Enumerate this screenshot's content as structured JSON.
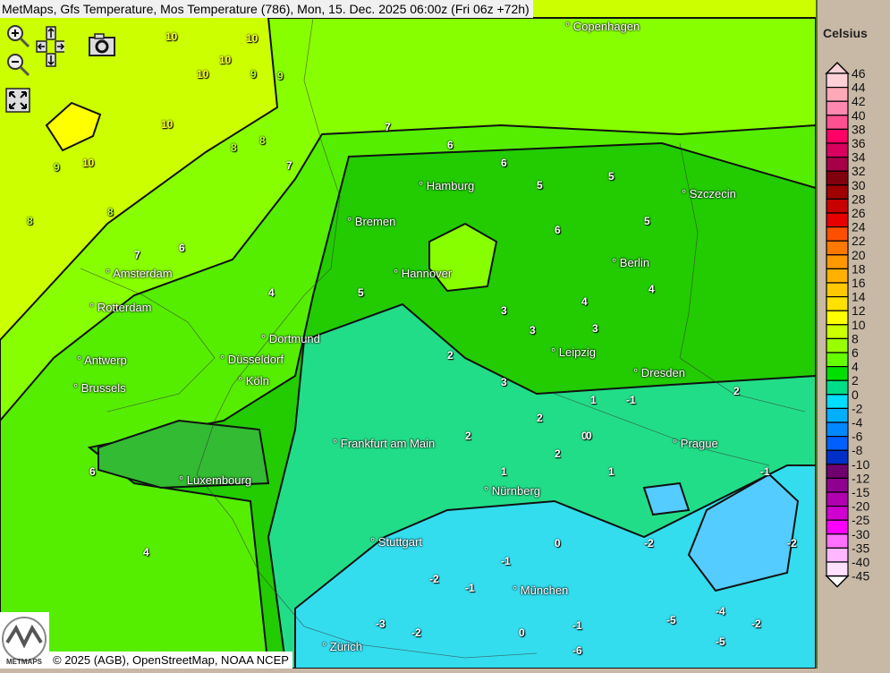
{
  "header": {
    "title": "MetMaps, Gfs Temperature, Mos Temperature (786), Mon, 15. Dec. 2025 06:00z (Fri 06z +72h)"
  },
  "toolbar": {
    "zoom_in_icon": "magnifier-plus",
    "zoom_out_icon": "magnifier-minus",
    "pan_icon": "arrow-cross",
    "camera_icon": "camera",
    "fullscreen_icon": "expand-arrows"
  },
  "legend": {
    "title": "Celsius",
    "steps": [
      {
        "label": "46",
        "color": "#ffd0d8"
      },
      {
        "label": "44",
        "color": "#ffa8b8"
      },
      {
        "label": "42",
        "color": "#ff88b0"
      },
      {
        "label": "40",
        "color": "#ff5090"
      },
      {
        "label": "38",
        "color": "#ff0066"
      },
      {
        "label": "36",
        "color": "#d80060"
      },
      {
        "label": "34",
        "color": "#a80048"
      },
      {
        "label": "32",
        "color": "#800010"
      },
      {
        "label": "30",
        "color": "#a00000"
      },
      {
        "label": "28",
        "color": "#c80000"
      },
      {
        "label": "26",
        "color": "#e80000"
      },
      {
        "label": "24",
        "color": "#ff5000"
      },
      {
        "label": "22",
        "color": "#ff7800"
      },
      {
        "label": "20",
        "color": "#ff9800"
      },
      {
        "label": "18",
        "color": "#ffb000"
      },
      {
        "label": "16",
        "color": "#ffc800"
      },
      {
        "label": "14",
        "color": "#ffe000"
      },
      {
        "label": "12",
        "color": "#ffff00"
      },
      {
        "label": "10",
        "color": "#ccff00"
      },
      {
        "label": "8",
        "color": "#99ff00"
      },
      {
        "label": "6",
        "color": "#66ff00"
      },
      {
        "label": "4",
        "color": "#00e000"
      },
      {
        "label": "2",
        "color": "#00dd88"
      },
      {
        "label": "0",
        "color": "#00ddff"
      },
      {
        "label": "-2",
        "color": "#00b0ff"
      },
      {
        "label": "-4",
        "color": "#0088ff"
      },
      {
        "label": "-6",
        "color": "#0060ff"
      },
      {
        "label": "-8",
        "color": "#0030c8"
      },
      {
        "label": "-10",
        "color": "#700070"
      },
      {
        "label": "-12",
        "color": "#900090"
      },
      {
        "label": "-15",
        "color": "#b000b0"
      },
      {
        "label": "-20",
        "color": "#d000d0"
      },
      {
        "label": "-25",
        "color": "#ff00ff"
      },
      {
        "label": "-30",
        "color": "#ff70ff"
      },
      {
        "label": "-35",
        "color": "#ffb8ff"
      },
      {
        "label": "-40",
        "color": "#ffe0ff"
      },
      {
        "label": "-45",
        "color": "#ffffff"
      }
    ]
  },
  "cities": [
    "Copenhagen",
    "Szczecin",
    "Hamburg",
    "Bremen",
    "Hannover",
    "Berlin",
    "Amsterdam",
    "Rotterdam",
    "Dortmund",
    "Antwerp",
    "Düsseldorf",
    "Brussels",
    "Köln",
    "Leipzig",
    "Dresden",
    "Frankfurt am Main",
    "Prague",
    "Luxembourg",
    "Nürnberg",
    "Stuttgart",
    "München",
    "Zürich"
  ],
  "station_values": [
    "10",
    "10",
    "10",
    "10",
    "10",
    "10",
    "9",
    "9",
    "8",
    "8",
    "7",
    "7",
    "6",
    "6",
    "5",
    "6",
    "5",
    "5",
    "4",
    "4",
    "3",
    "3",
    "3",
    "2",
    "3",
    "2",
    "2",
    "1",
    "2",
    "1",
    "0",
    "-1",
    "-2",
    "0",
    "-1",
    "-2",
    "-3",
    "-2",
    "-1",
    "0",
    "-1",
    "-5",
    "-4",
    "-2",
    "-2",
    "-1",
    "2",
    "5",
    "4",
    "6",
    "7",
    "8",
    "9",
    "8",
    "6",
    "4",
    "-6",
    "-5",
    "1",
    "0"
  ],
  "footer": {
    "copyright": "© 2025 (AGB), OpenStreetMap, NOAA NCEP",
    "logo_text": "METMAPS"
  }
}
